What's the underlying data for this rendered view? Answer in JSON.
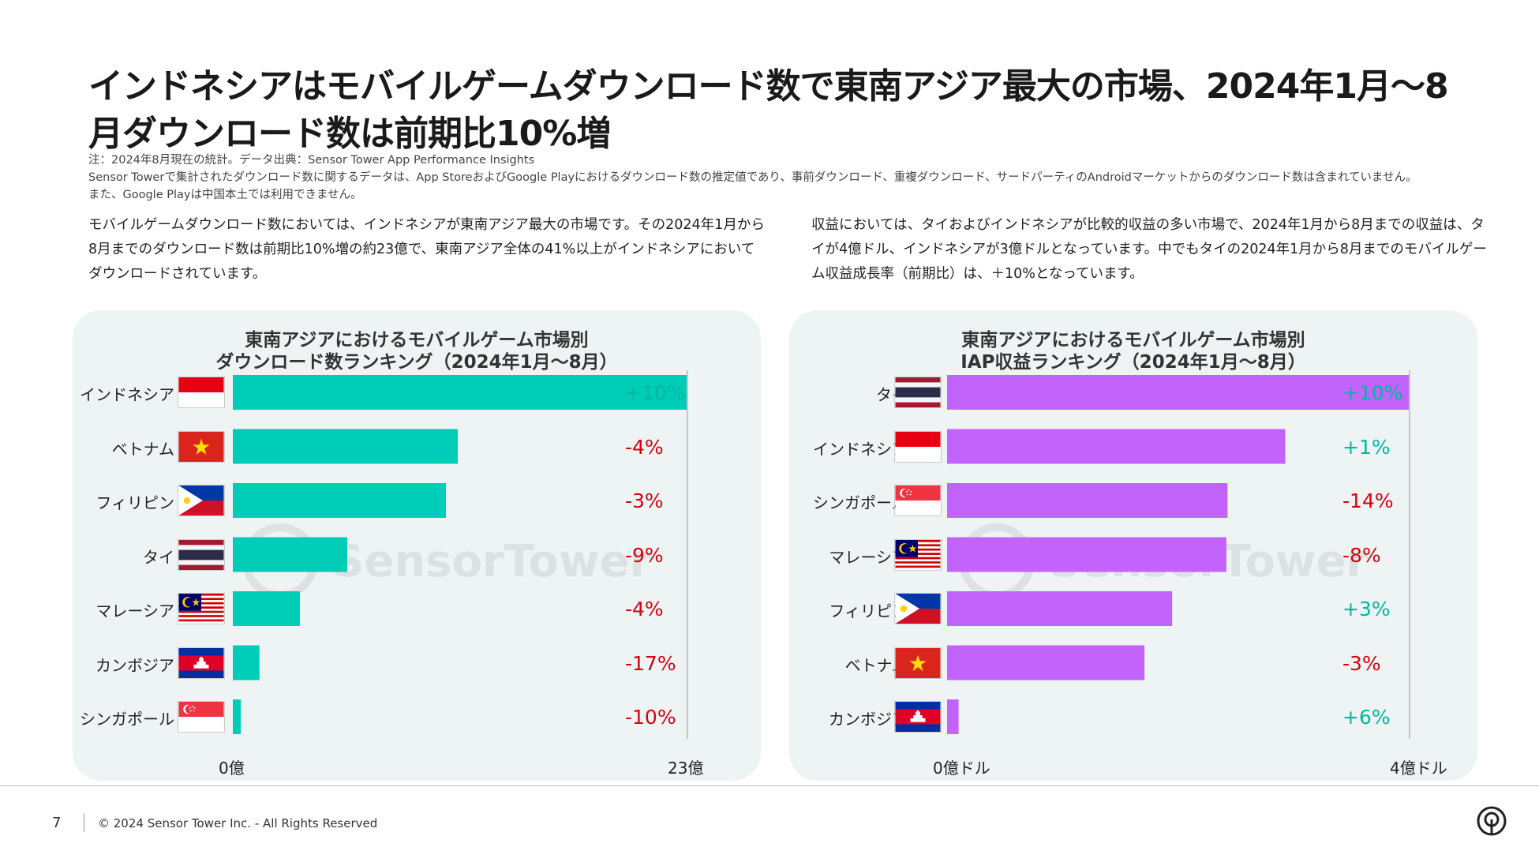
{
  "title": "インドネシアはモバイルゲームダウンロード数で東南アジア最大の市場、2024年1月～8月ダウンロード数は前期比10%増",
  "notes": [
    "注：2024年8月現在の統計。データ出典：Sensor Tower App Performance Insights",
    "Sensor Towerで集計されたダウンロード数に関するデータは、App StoreおよびGoogle Playにおけるダウンロード数の推定値であり、事前ダウンロード、重複ダウンロード、サードパーティのAndroidマーケットからのダウンロード数は含まれていません。",
    "また、Google Playは中国本土では利用できません。"
  ],
  "paragraph_left": "モバイルゲームダウンロード数においては、インドネシアが東南アジア最大の市場です。その2024年1月から8月までのダウンロード数は前期比10%増の約23億で、東南アジア全体の41%以上がインドネシアにおいてダウンロードされています。",
  "paragraph_right": "収益においては、タイおよびインドネシアが比較的収益の多い市場で、2024年1月から8月までの収益は、タイが4億ドル、インドネシアが3億ドルとなっています。中でもタイの2024年1月から8月までのモバイルゲーム収益成長率（前期比）は、＋10%となっています。",
  "watermark": "SensorTower",
  "colors": {
    "teal": "#00cdb8",
    "purple": "#c264fb",
    "positive": "#00b89f",
    "negative": "#d7000f"
  },
  "chart_data": [
    {
      "type": "bar",
      "orientation": "horizontal",
      "title_line1": "東南アジアにおけるモバイルゲーム市場別",
      "title_line2": "ダウンロード数ランキング（2024年1月～8月）",
      "categories": [
        "インドネシア",
        "ベトナム",
        "フィリピン",
        "タイ",
        "マレーシア",
        "カンボジア",
        "シンガポール"
      ],
      "flags": [
        "indonesia-flag",
        "vietnam-flag",
        "philippines-flag",
        "thailand-flag",
        "malaysia-flag",
        "cambodia-flag",
        "singapore-flag"
      ],
      "values": [
        23,
        11.4,
        10.8,
        5.8,
        3.4,
        1.35,
        0.4
      ],
      "unit": "億",
      "growth": [
        "+10%",
        "-4%",
        "-3%",
        "-9%",
        "-4%",
        "-17%",
        "-10%"
      ],
      "xlim": [
        0,
        23
      ],
      "xlabel_min": "0億",
      "xlabel_max": "23億",
      "color": "#00cdb8"
    },
    {
      "type": "bar",
      "orientation": "horizontal",
      "title_line1": "東南アジアにおけるモバイルゲーム市場別",
      "title_line2": "IAP収益ランキング（2024年1月～8月）",
      "categories": [
        "タイ",
        "インドネシア",
        "シンガポール",
        "マレーシア",
        "フィリピン",
        "ベトナム",
        "カンボジア"
      ],
      "flags": [
        "thailand-flag",
        "indonesia-flag",
        "singapore-flag",
        "malaysia-flag",
        "philippines-flag",
        "vietnam-flag",
        "cambodia-flag"
      ],
      "values": [
        4,
        2.93,
        2.43,
        2.42,
        1.95,
        1.71,
        0.1
      ],
      "unit": "億ドル",
      "growth": [
        "+10%",
        "+1%",
        "-14%",
        "-8%",
        "+3%",
        "-3%",
        "+6%"
      ],
      "xlim": [
        0,
        4
      ],
      "xlabel_min": "0億ドル",
      "xlabel_max": "4億ドル",
      "color": "#c264fb"
    }
  ],
  "footer": {
    "page_number": "7",
    "copyright": "© 2024 Sensor Tower Inc. - All Rights Reserved"
  }
}
